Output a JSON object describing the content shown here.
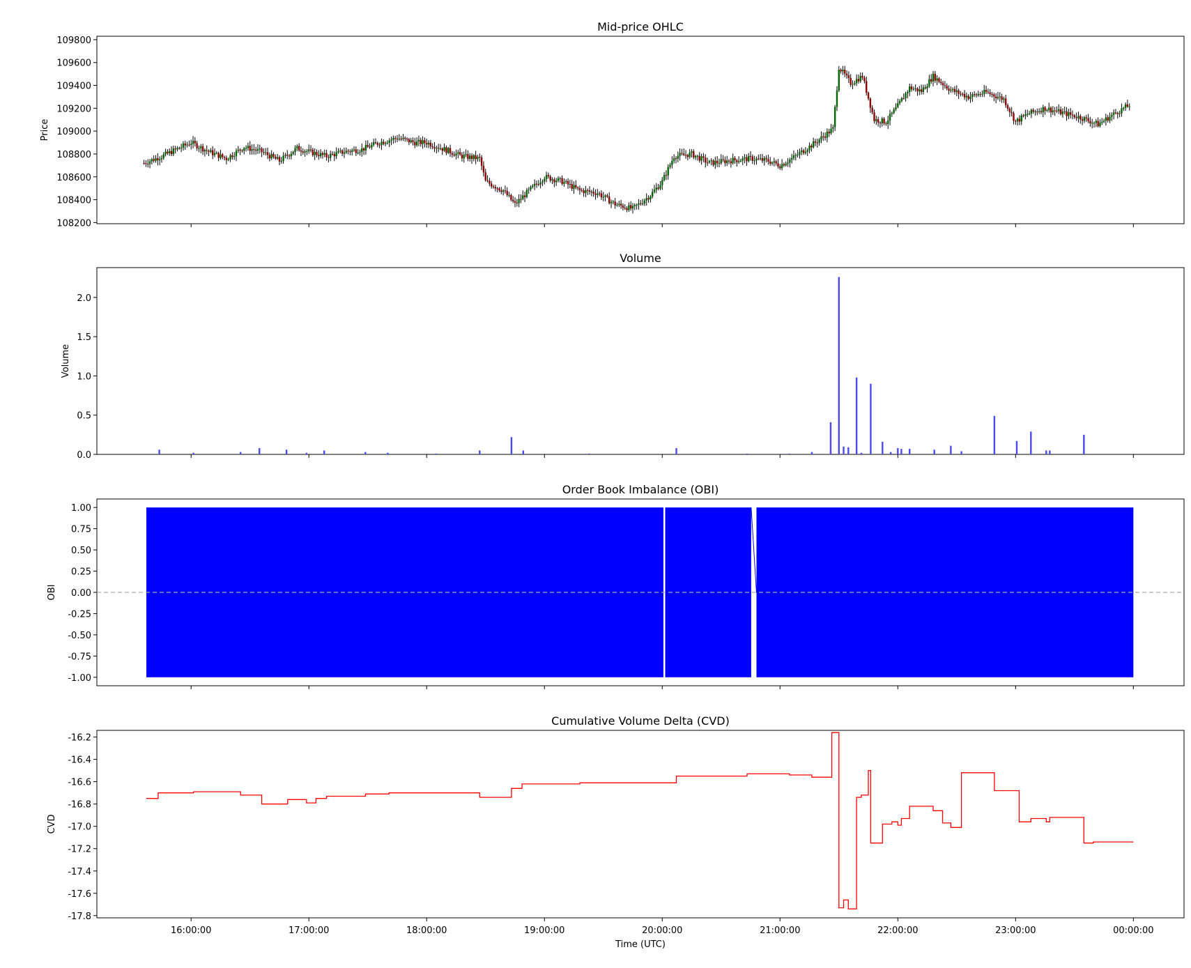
{
  "figure": {
    "xlabel": "Time (UTC)"
  },
  "colors": {
    "up": "#006400",
    "down": "#8b0000",
    "wick": "#000000",
    "volume": "#4a4aee",
    "obi": "#0000ff",
    "zero_line": "#aaaaaa",
    "cvd": "#ff0000"
  },
  "chart_data": [
    {
      "type": "candlestick",
      "title": "Mid-price OHLC",
      "ylabel": "Price",
      "x_ticks": [
        "16:00:00",
        "17:00:00",
        "18:00:00",
        "19:00:00",
        "20:00:00",
        "21:00:00",
        "22:00:00",
        "23:00:00",
        "00:00:00"
      ],
      "y_ticks": [
        108200,
        108400,
        108600,
        108800,
        109000,
        109200,
        109400,
        109600,
        109800
      ],
      "ylim": [
        108190,
        109830
      ],
      "series": [
        {
          "x_hours": [
            15.6,
            15.75,
            16.0,
            16.15,
            16.3,
            16.45,
            16.6,
            16.75,
            16.9,
            17.0,
            17.15,
            17.3,
            17.45,
            17.6,
            17.75,
            17.9,
            18.0,
            18.15,
            18.3,
            18.45,
            18.5,
            18.65,
            18.75,
            18.85,
            19.0,
            19.15,
            19.3,
            19.45,
            19.6,
            19.75,
            19.9,
            20.0,
            20.1,
            20.25,
            20.4,
            20.55,
            20.75,
            20.9,
            21.0,
            21.1,
            21.3,
            21.45,
            21.5,
            21.6,
            21.7,
            21.8,
            21.9,
            22.0,
            22.1,
            22.2,
            22.3,
            22.45,
            22.6,
            22.75,
            22.9,
            23.0,
            23.1,
            23.25,
            23.4,
            23.55,
            23.7,
            23.85,
            23.97
          ],
          "close": [
            108720,
            108780,
            108900,
            108820,
            108760,
            108860,
            108820,
            108740,
            108850,
            108820,
            108780,
            108820,
            108840,
            108900,
            108940,
            108900,
            108900,
            108840,
            108780,
            108760,
            108560,
            108480,
            108360,
            108460,
            108600,
            108560,
            108480,
            108460,
            108360,
            108320,
            108440,
            108560,
            108780,
            108800,
            108720,
            108740,
            108760,
            108740,
            108700,
            108760,
            108900,
            109020,
            109560,
            109420,
            109480,
            109100,
            109080,
            109220,
            109380,
            109350,
            109480,
            109360,
            109300,
            109340,
            109280,
            109080,
            109150,
            109200,
            109160,
            109120,
            109060,
            109160,
            109230
          ]
        }
      ]
    },
    {
      "type": "bar",
      "title": "Volume",
      "ylabel": "Volume",
      "y_ticks": [
        "0.0",
        "0.5",
        "1.0",
        "1.5",
        "2.0"
      ],
      "ylim": [
        0,
        2.38
      ],
      "x_hours": [
        15.73,
        16.02,
        16.42,
        16.58,
        16.81,
        16.98,
        17.13,
        17.48,
        17.67,
        18.08,
        18.45,
        18.72,
        18.82,
        19.38,
        20.12,
        20.72,
        21.08,
        21.27,
        21.43,
        21.5,
        21.54,
        21.58,
        21.65,
        21.69,
        21.77,
        21.87,
        21.94,
        22.0,
        22.03,
        22.1,
        22.31,
        22.45,
        22.54,
        22.82,
        23.01,
        23.13,
        23.26,
        23.29,
        23.58
      ],
      "values": [
        0.06,
        0.02,
        0.03,
        0.08,
        0.06,
        0.02,
        0.05,
        0.03,
        0.02,
        0.01,
        0.05,
        0.22,
        0.05,
        0.01,
        0.08,
        0.01,
        0.01,
        0.03,
        0.41,
        2.26,
        0.1,
        0.09,
        0.98,
        0.02,
        0.9,
        0.16,
        0.03,
        0.08,
        0.07,
        0.07,
        0.06,
        0.11,
        0.04,
        0.49,
        0.17,
        0.29,
        0.05,
        0.05,
        0.25
      ]
    },
    {
      "type": "area",
      "title": "Order Book Imbalance (OBI)",
      "ylabel": "OBI",
      "y_ticks": [
        "1.00",
        "0.75",
        "0.50",
        "0.25",
        "0.00",
        "-0.25",
        "-0.50",
        "-0.75",
        "-1.00"
      ],
      "ylim": [
        -1.1,
        1.1
      ],
      "x_range": [
        15.62,
        24.0
      ],
      "oscillation_range": [
        -1.0,
        1.0
      ],
      "gaps_hours": [
        [
          20.01,
          20.025
        ],
        [
          20.755,
          20.8
        ]
      ]
    },
    {
      "type": "line",
      "title": "Cumulative Volume Delta (CVD)",
      "ylabel": "CVD",
      "y_ticks": [
        "-16.2",
        "-16.4",
        "-16.6",
        "-16.8",
        "-17.0",
        "-17.2",
        "-17.4",
        "-17.6",
        "-17.8"
      ],
      "ylim": [
        -17.82,
        -16.14
      ],
      "series": [
        {
          "x_hours": [
            15.62,
            15.72,
            15.72,
            16.02,
            16.02,
            16.42,
            16.42,
            16.6,
            16.6,
            16.82,
            16.82,
            16.98,
            16.98,
            17.06,
            17.06,
            17.15,
            17.15,
            17.48,
            17.48,
            17.68,
            17.68,
            18.45,
            18.45,
            18.72,
            18.72,
            18.81,
            18.81,
            19.3,
            19.3,
            20.12,
            20.12,
            20.72,
            20.72,
            21.08,
            21.08,
            21.27,
            21.27,
            21.44,
            21.44,
            21.5,
            21.5,
            21.54,
            21.54,
            21.58,
            21.58,
            21.65,
            21.65,
            21.69,
            21.69,
            21.75,
            21.75,
            21.77,
            21.77,
            21.87,
            21.87,
            21.95,
            21.95,
            22.0,
            22.0,
            22.03,
            22.03,
            22.1,
            22.1,
            22.3,
            22.3,
            22.38,
            22.38,
            22.45,
            22.45,
            22.54,
            22.54,
            22.82,
            22.82,
            23.03,
            23.03,
            23.13,
            23.13,
            23.26,
            23.26,
            23.29,
            23.29,
            23.58,
            23.58,
            23.66,
            23.66,
            24.0
          ],
          "values": [
            -16.75,
            -16.75,
            -16.7,
            -16.7,
            -16.69,
            -16.69,
            -16.72,
            -16.72,
            -16.8,
            -16.8,
            -16.76,
            -16.76,
            -16.79,
            -16.79,
            -16.75,
            -16.75,
            -16.73,
            -16.73,
            -16.71,
            -16.71,
            -16.7,
            -16.7,
            -16.74,
            -16.74,
            -16.66,
            -16.66,
            -16.62,
            -16.62,
            -16.61,
            -16.61,
            -16.55,
            -16.55,
            -16.53,
            -16.53,
            -16.54,
            -16.54,
            -16.56,
            -16.56,
            -16.16,
            -16.16,
            -17.73,
            -17.73,
            -17.66,
            -17.66,
            -17.74,
            -17.74,
            -16.74,
            -16.74,
            -16.72,
            -16.72,
            -16.5,
            -16.5,
            -17.15,
            -17.15,
            -16.98,
            -16.98,
            -16.96,
            -16.96,
            -16.99,
            -16.99,
            -16.93,
            -16.93,
            -16.82,
            -16.82,
            -16.86,
            -16.86,
            -16.97,
            -16.97,
            -17.01,
            -17.01,
            -16.52,
            -16.52,
            -16.68,
            -16.68,
            -16.96,
            -16.96,
            -16.93,
            -16.93,
            -16.96,
            -16.96,
            -16.92,
            -16.92,
            -17.15,
            -17.15,
            -17.14,
            -17.14
          ]
        }
      ]
    }
  ]
}
